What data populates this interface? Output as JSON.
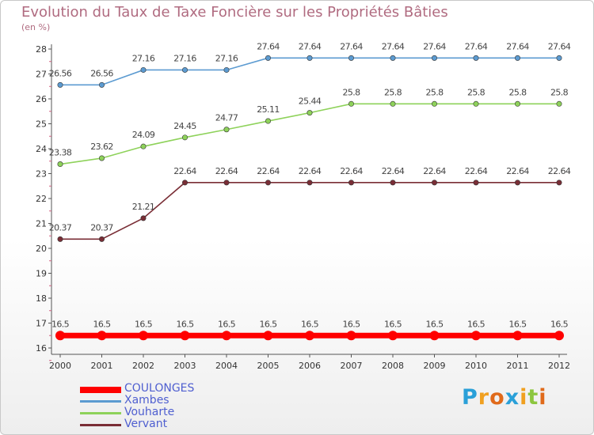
{
  "title": "Evolution du Taux de Taxe Foncière sur les Propriétés Bâties",
  "subtitle": "(en %)",
  "chart_data": {
    "type": "line",
    "x": [
      "2000",
      "2001",
      "2002",
      "2003",
      "2004",
      "2005",
      "2006",
      "2007",
      "2008",
      "2009",
      "2010",
      "2011",
      "2012"
    ],
    "ylim": [
      16,
      28
    ],
    "yticks": [
      16,
      17,
      18,
      19,
      20,
      21,
      22,
      23,
      24,
      25,
      26,
      27,
      28
    ],
    "grid": false,
    "legend_position": "bottom-left",
    "series": [
      {
        "name": "COULONGES",
        "color": "#ff0000",
        "values": [
          16.5,
          16.5,
          16.5,
          16.5,
          16.5,
          16.5,
          16.5,
          16.5,
          16.5,
          16.5,
          16.5,
          16.5,
          16.5
        ],
        "labels": [
          "16.5",
          "16.5",
          "16.5",
          "16.5",
          "16.5",
          "16.5",
          "16.5",
          "16.5",
          "16.5",
          "16.5",
          "16.5",
          "16.5",
          "16.5"
        ]
      },
      {
        "name": "Xambes",
        "color": "#5c9bd1",
        "values": [
          26.56,
          26.56,
          27.16,
          27.16,
          27.16,
          27.64,
          27.64,
          27.64,
          27.64,
          27.64,
          27.64,
          27.64,
          27.64
        ],
        "labels": [
          "26.56",
          "26.56",
          "27.16",
          "27.16",
          "27.16",
          "27.64",
          "27.64",
          "27.64",
          "27.64",
          "27.64",
          "27.64",
          "27.64",
          "27.64"
        ]
      },
      {
        "name": "Vouharte",
        "color": "#8ed25a",
        "values": [
          23.38,
          23.62,
          24.09,
          24.45,
          24.77,
          25.11,
          25.44,
          25.8,
          25.8,
          25.8,
          25.8,
          25.8,
          25.8
        ],
        "labels": [
          "23.38",
          "23.62",
          "24.09",
          "24.45",
          "24.77",
          "25.11",
          "25.44",
          "25.8",
          "25.8",
          "25.8",
          "25.8",
          "25.8",
          "25.8"
        ]
      },
      {
        "name": "Vervant",
        "color": "#7a2e36",
        "values": [
          20.37,
          20.37,
          21.21,
          22.64,
          22.64,
          22.64,
          22.64,
          22.64,
          22.64,
          22.64,
          22.64,
          22.64,
          22.64
        ],
        "labels": [
          "20.37",
          "20.37",
          "21.21",
          "22.64",
          "22.64",
          "22.64",
          "22.64",
          "22.64",
          "22.64",
          "22.64",
          "22.64",
          "22.64",
          "22.64"
        ]
      }
    ]
  },
  "logo": {
    "letters": [
      "P",
      "r",
      "o",
      "x",
      "i",
      "t",
      "i"
    ],
    "colors": [
      "#2aa0d8",
      "#f0a020",
      "#e06a1a",
      "#2aa0d8",
      "#f0a020",
      "#8cc63f",
      "#e06a1a"
    ]
  }
}
